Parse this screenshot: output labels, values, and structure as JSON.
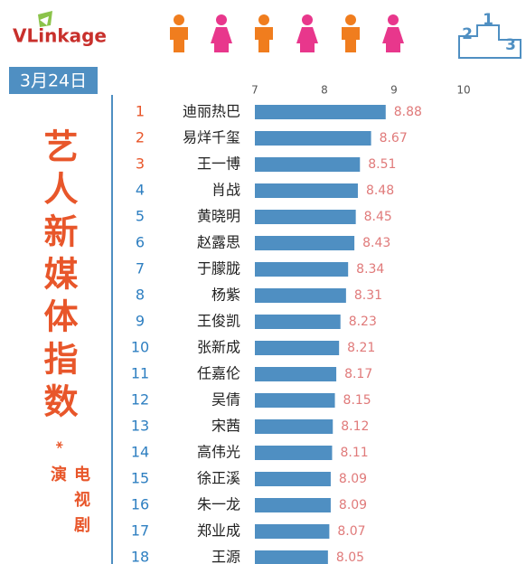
{
  "header": {
    "brand": "VLinkage",
    "podium": [
      2,
      1,
      3
    ]
  },
  "date": "3月24日",
  "side_title": "艺人新媒体指数",
  "side_mark": "*",
  "side_subtitle": "电视剧演",
  "chart_data": {
    "type": "bar",
    "orientation": "horizontal",
    "ranks": [
      1,
      2,
      3,
      4,
      5,
      6,
      7,
      8,
      9,
      10,
      11,
      12,
      13,
      14,
      15,
      16,
      17,
      18
    ],
    "categories": [
      "迪丽热巴",
      "易烊千玺",
      "王一博",
      "肖战",
      "黄晓明",
      "赵露思",
      "于朦胧",
      "杨紫",
      "王俊凯",
      "张新成",
      "任嘉伦",
      "吴倩",
      "宋茜",
      "高伟光",
      "徐正溪",
      "朱一龙",
      "郑业成",
      "王源"
    ],
    "values": [
      8.88,
      8.67,
      8.51,
      8.48,
      8.45,
      8.43,
      8.34,
      8.31,
      8.23,
      8.21,
      8.17,
      8.15,
      8.12,
      8.11,
      8.09,
      8.09,
      8.07,
      8.05
    ],
    "color": "#4f8fc2",
    "value_label_color": "#e07a7a",
    "rank_color": "#2e7fc1",
    "top_rank_color": "#e8562a",
    "xlim": [
      7,
      10
    ],
    "xticks": [
      7,
      8,
      9,
      10
    ],
    "grid": false
  }
}
